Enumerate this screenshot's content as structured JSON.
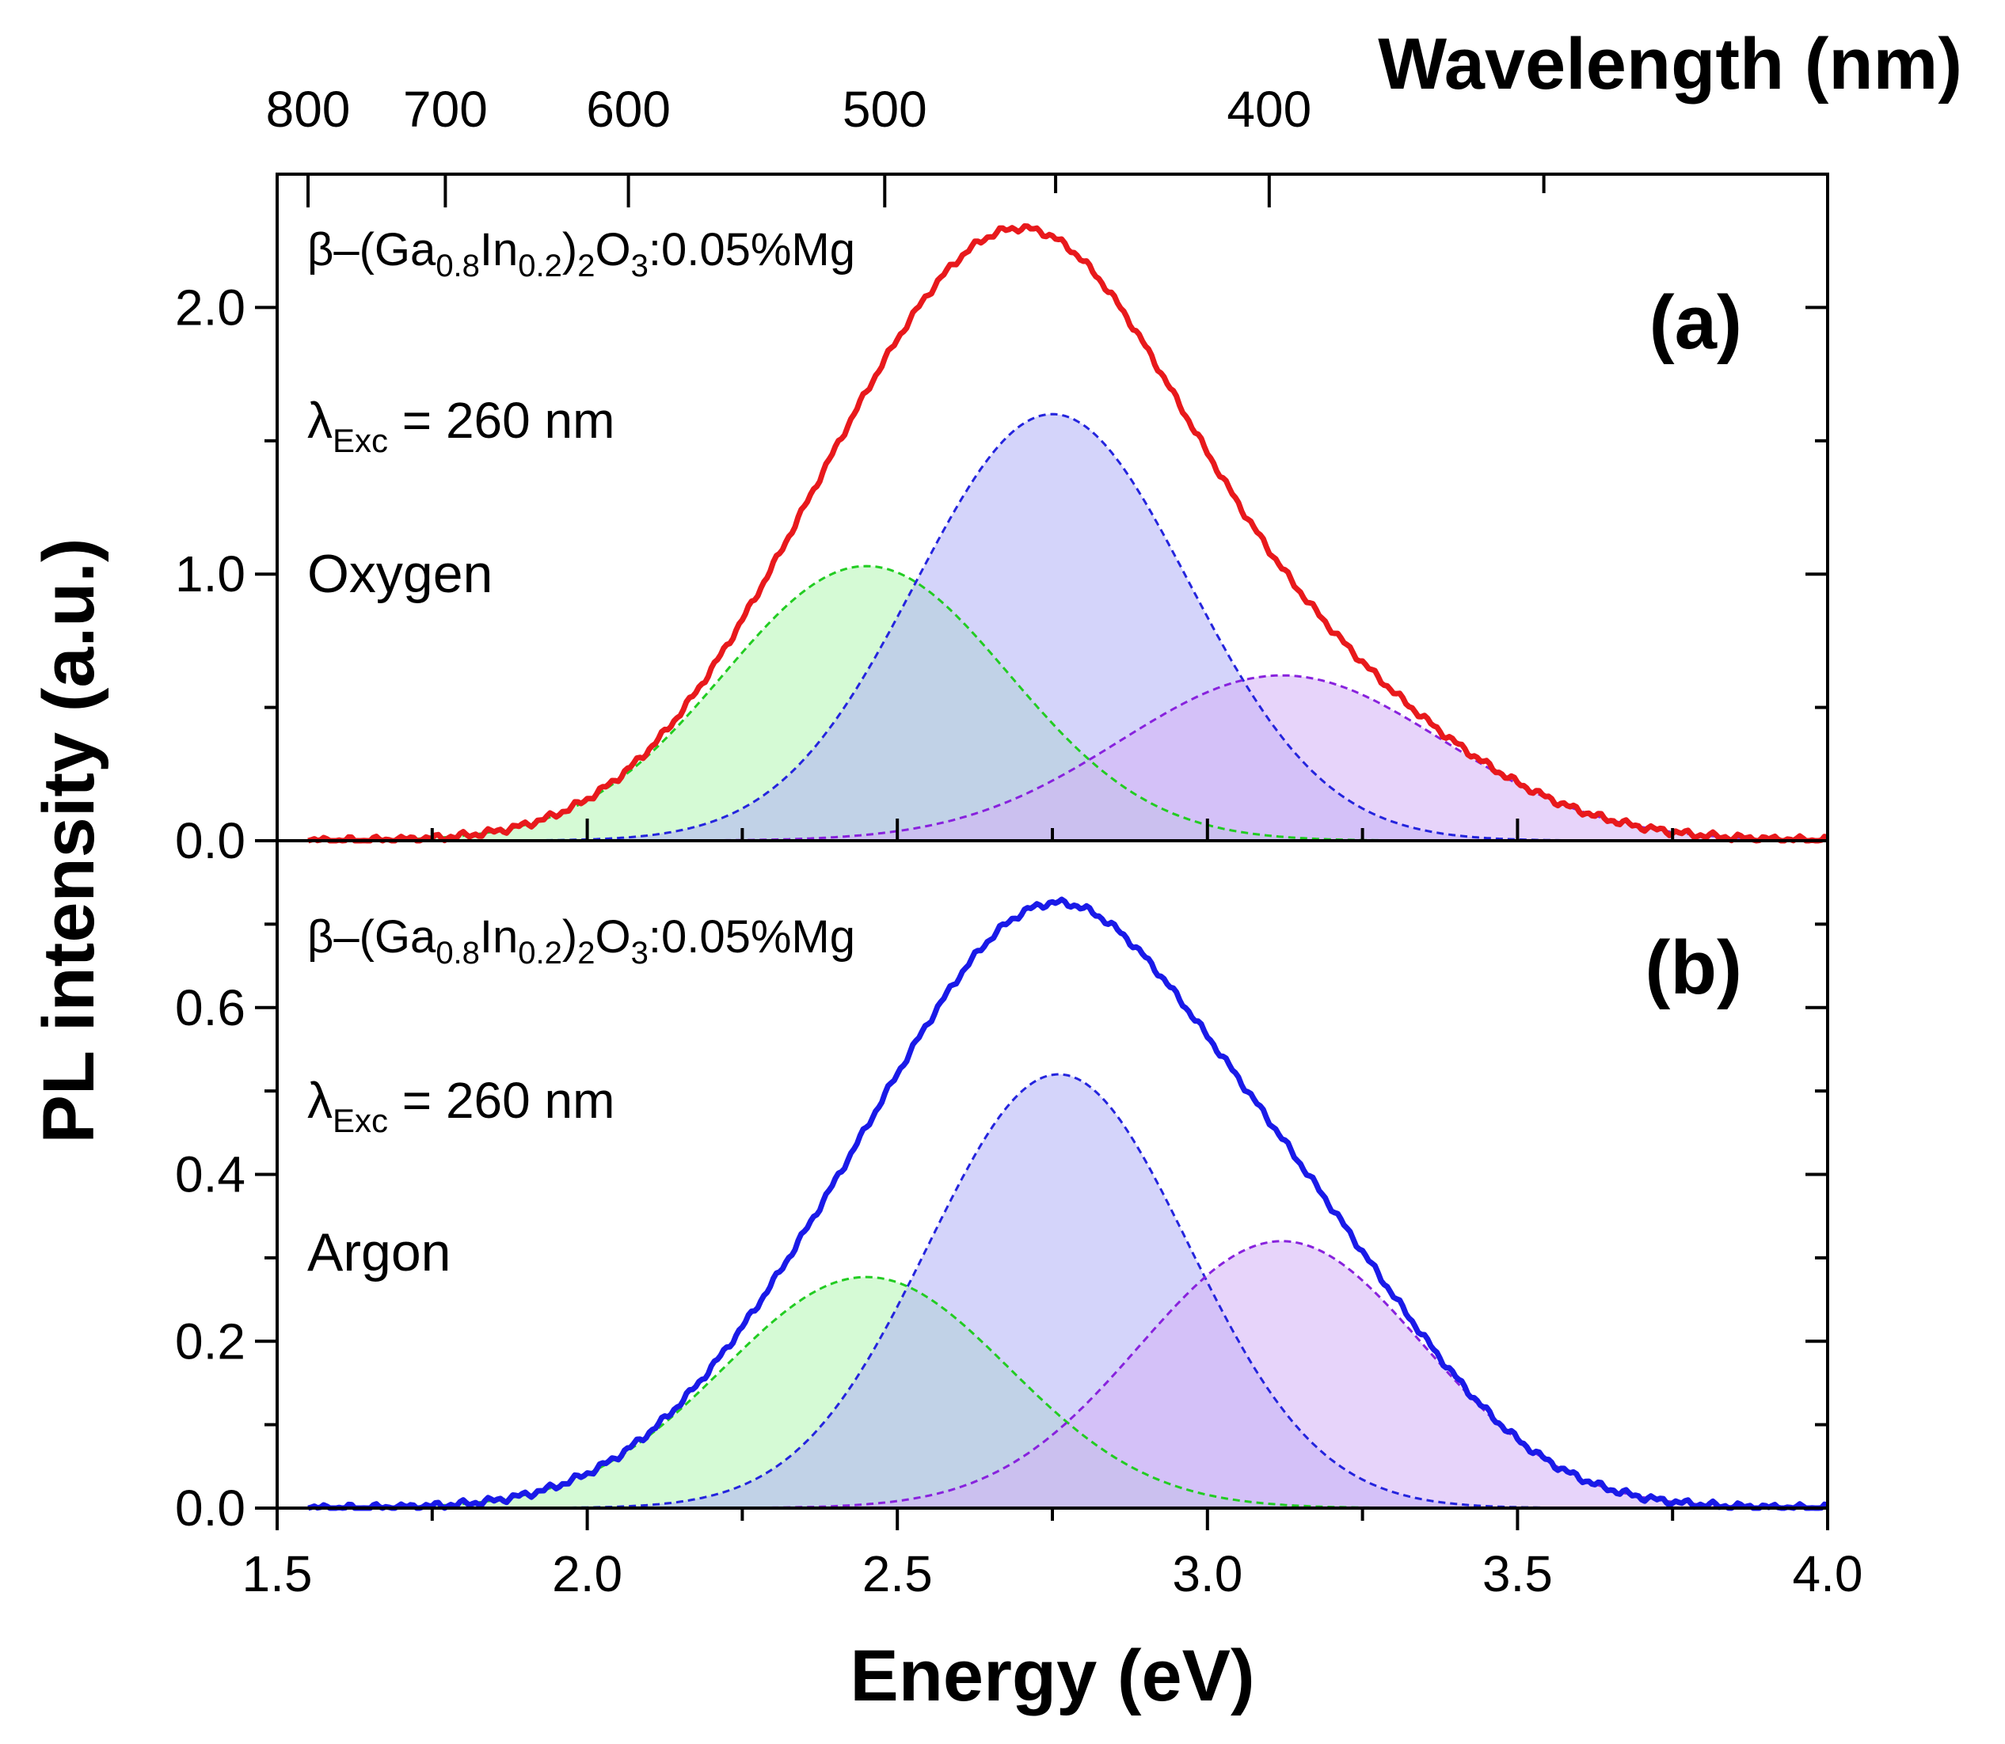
{
  "chart_data": {
    "type": "line",
    "xlabel": "Energy (eV)",
    "ylabel": "PL intensity (a.u.)",
    "top_axis_label": "Wavelength (nm)",
    "xlim": [
      1.5,
      4.0
    ],
    "x_ticks": [
      "1.5",
      "2.0",
      "2.5",
      "3.0",
      "3.5",
      "4.0"
    ],
    "top_ticks": [
      {
        "label": "800",
        "nm": 800
      },
      {
        "label": "700",
        "nm": 700
      },
      {
        "label": "600",
        "nm": 600
      },
      {
        "label": "500",
        "nm": 500
      },
      {
        "label": "400",
        "nm": 400
      }
    ],
    "panels": [
      {
        "id": "a",
        "panel_label": "(a)",
        "sample_prefix": "β–(Ga",
        "sample_sub1": "0.8",
        "sample_mid": "In",
        "sample_sub2": "0.2",
        "sample_close": ")",
        "sample_sub3": "2",
        "sample_o": "O",
        "sample_sub4": "3",
        "sample_suffix": ":0.05%Mg",
        "exc_lambda": "λ",
        "exc_sub": "Exc",
        "exc_value": " = 260 nm",
        "atmosphere": "Oxygen",
        "ylim": [
          0,
          2.5
        ],
        "y_ticks": [
          "0.0",
          "1.0",
          "2.0"
        ],
        "y_tick_values": [
          0,
          1,
          2
        ],
        "measured": {
          "name": "Measured PL (oxygen)",
          "color": "#e8191c"
        },
        "components": [
          {
            "name": "Green Gaussian",
            "center_eV": 2.45,
            "amplitude": 1.03,
            "sigma_eV": 0.23,
            "line": "#22cc22",
            "fill": "#b2f5b2"
          },
          {
            "name": "Blue Gaussian",
            "center_eV": 2.75,
            "amplitude": 1.6,
            "sigma_eV": 0.22,
            "line": "#2424dd",
            "fill": "#b0b0f5"
          },
          {
            "name": "Violet Gaussian",
            "center_eV": 3.12,
            "amplitude": 0.62,
            "sigma_eV": 0.26,
            "line": "#8822dd",
            "fill": "#d4b0f5"
          }
        ]
      },
      {
        "id": "b",
        "panel_label": "(b)",
        "sample_prefix": "β–(Ga",
        "sample_sub1": "0.8",
        "sample_mid": "In",
        "sample_sub2": "0.2",
        "sample_close": ")",
        "sample_sub3": "2",
        "sample_o": "O",
        "sample_sub4": "3",
        "sample_suffix": ":0.05%Mg",
        "exc_lambda": "λ",
        "exc_sub": "Exc",
        "exc_value": " = 260 nm",
        "atmosphere": "Argon",
        "ylim": [
          0,
          0.8
        ],
        "y_ticks": [
          "0.0",
          "0.2",
          "0.4",
          "0.6"
        ],
        "y_tick_values": [
          0,
          0.2,
          0.4,
          0.6
        ],
        "measured": {
          "name": "Measured PL (argon)",
          "color": "#1a1ae8"
        },
        "components": [
          {
            "name": "Green Gaussian",
            "center_eV": 2.45,
            "amplitude": 0.277,
            "sigma_eV": 0.23,
            "line": "#22cc22",
            "fill": "#b2f5b2"
          },
          {
            "name": "Blue Gaussian",
            "center_eV": 2.76,
            "amplitude": 0.52,
            "sigma_eV": 0.21,
            "line": "#2424dd",
            "fill": "#b0b0f5"
          },
          {
            "name": "Violet Gaussian",
            "center_eV": 3.12,
            "amplitude": 0.32,
            "sigma_eV": 0.23,
            "line": "#8822dd",
            "fill": "#d4b0f5"
          }
        ]
      }
    ]
  }
}
